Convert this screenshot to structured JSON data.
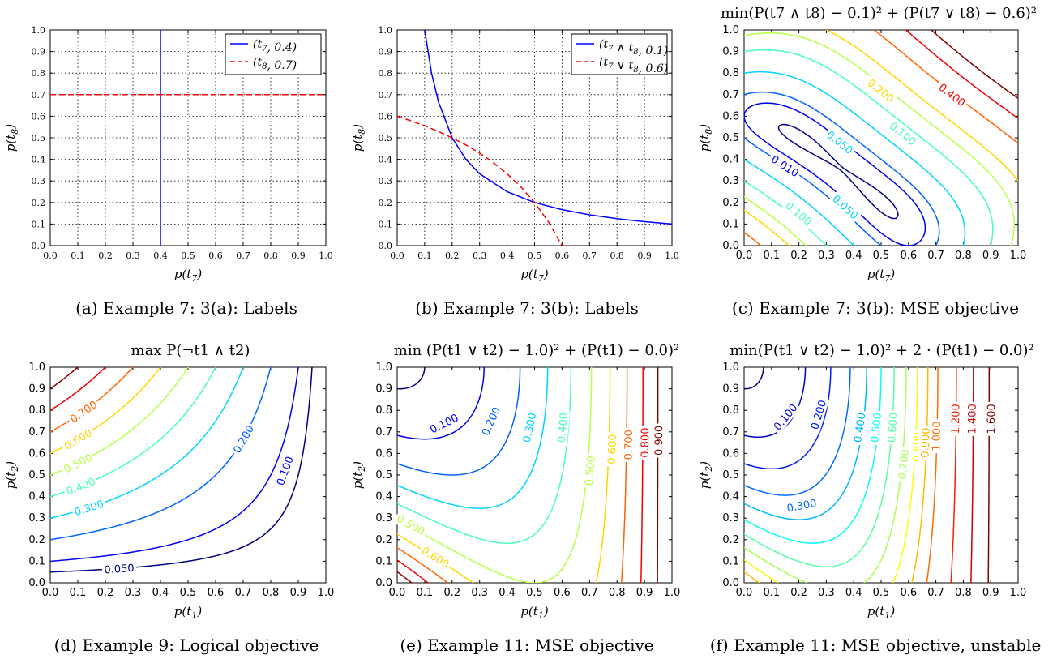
{
  "chart_data": [
    {
      "id": "a",
      "type": "line",
      "title": "",
      "caption": "(a) Example 7: 3(a): Labels",
      "xlabel": "p(t7)",
      "ylabel": "p(t8)",
      "xlim": [
        0,
        1
      ],
      "ylim": [
        0,
        1
      ],
      "ticks": [
        "0.0",
        "0.1",
        "0.2",
        "0.3",
        "0.4",
        "0.5",
        "0.6",
        "0.7",
        "0.8",
        "0.9",
        "1.0"
      ],
      "grid": true,
      "legend_position": "top-right",
      "series": [
        {
          "name": "(t7, 0.4)",
          "style": "solid",
          "color": "#0000ff",
          "x": [
            0.4,
            0.4
          ],
          "y": [
            0,
            1
          ]
        },
        {
          "name": "(t8, 0.7)",
          "style": "dashed",
          "color": "#ff0000",
          "x": [
            0,
            1
          ],
          "y": [
            0.7,
            0.7
          ]
        }
      ]
    },
    {
      "id": "b",
      "type": "line",
      "title": "",
      "caption": "(b) Example 7: 3(b): Labels",
      "xlabel": "p(t7)",
      "ylabel": "p(t8)",
      "xlim": [
        0,
        1
      ],
      "ylim": [
        0,
        1
      ],
      "ticks": [
        "0.0",
        "0.1",
        "0.2",
        "0.3",
        "0.4",
        "0.5",
        "0.6",
        "0.7",
        "0.8",
        "0.9",
        "1.0"
      ],
      "grid": true,
      "legend_position": "top-right",
      "series": [
        {
          "name": "(t7 ∧ t8, 0.1)",
          "style": "solid",
          "color": "#0000ff",
          "x": [
            0.1,
            0.125,
            0.15,
            0.2,
            0.25,
            0.3,
            0.4,
            0.5,
            0.6,
            0.7,
            0.8,
            0.9,
            1.0
          ],
          "y": [
            1.0,
            0.8,
            0.667,
            0.5,
            0.4,
            0.333,
            0.25,
            0.2,
            0.167,
            0.143,
            0.125,
            0.111,
            0.1
          ]
        },
        {
          "name": "(t7 ∨ t8, 0.6)",
          "style": "dashed",
          "color": "#ff0000",
          "x": [
            0.0,
            0.05,
            0.1,
            0.15,
            0.2,
            0.25,
            0.3,
            0.35,
            0.4,
            0.45,
            0.5,
            0.55,
            0.6
          ],
          "y": [
            0.6,
            0.579,
            0.556,
            0.529,
            0.5,
            0.467,
            0.429,
            0.385,
            0.333,
            0.273,
            0.2,
            0.111,
            0.0
          ]
        }
      ]
    },
    {
      "id": "c",
      "type": "contour",
      "title": "min(P(t7 ∧ t8) − 0.1)² + (P(t7 ∨ t8) − 0.6)²",
      "caption": "(c) Example 7: 3(b): MSE objective",
      "xlabel": "p(t7)",
      "ylabel": "p(t8)",
      "xlim": [
        0,
        1
      ],
      "ylim": [
        0,
        1
      ],
      "ticks": [
        "0.0",
        "0.1",
        "0.2",
        "0.3",
        "0.4",
        "0.5",
        "0.6",
        "0.7",
        "0.8",
        "0.9",
        "1.0"
      ],
      "function": "(x*y - 0.1)^2 + (x + y - x*y - 0.6)^2",
      "levels": [
        0.001,
        0.01,
        0.02,
        0.05,
        0.1,
        0.15,
        0.2,
        0.3,
        0.4,
        0.5
      ],
      "contour_labels": [
        {
          "text": "0.010",
          "level": 0.01,
          "x": 0.15,
          "y": 0.37
        },
        {
          "text": "0.050",
          "level": 0.05,
          "x": 0.35,
          "y": 0.48
        },
        {
          "text": "0.100",
          "level": 0.1,
          "x": 0.58,
          "y": 0.52
        },
        {
          "text": "0.200",
          "level": 0.2,
          "x": 0.5,
          "y": 0.72
        },
        {
          "text": "0.400",
          "level": 0.4,
          "x": 0.76,
          "y": 0.7
        },
        {
          "text": "0.100",
          "level": 0.1,
          "x": 0.2,
          "y": 0.15
        },
        {
          "text": "0.050",
          "level": 0.05,
          "x": 0.37,
          "y": 0.18
        }
      ]
    },
    {
      "id": "d",
      "type": "contour",
      "title": "max P(¬t1 ∧ t2)",
      "caption": "(d) Example 9: Logical objective",
      "xlabel": "p(t1)",
      "ylabel": "p(t2)",
      "xlim": [
        0,
        1
      ],
      "ylim": [
        0,
        1
      ],
      "ticks": [
        "0.0",
        "0.1",
        "0.2",
        "0.3",
        "0.4",
        "0.5",
        "0.6",
        "0.7",
        "0.8",
        "0.9",
        "1.0"
      ],
      "function": "(1 - x) * y",
      "levels": [
        0.05,
        0.1,
        0.2,
        0.3,
        0.4,
        0.5,
        0.6,
        0.7,
        0.8,
        0.9
      ],
      "contour_labels": [
        {
          "text": "0.050",
          "level": 0.05,
          "x": 0.25,
          "y": 0.067
        },
        {
          "text": "0.100",
          "level": 0.1,
          "x": 0.85,
          "y": 0.52
        },
        {
          "text": "0.200",
          "level": 0.2,
          "x": 0.7,
          "y": 0.667
        },
        {
          "text": "0.300",
          "level": 0.3,
          "x": 0.14,
          "y": 0.349
        },
        {
          "text": "0.400",
          "level": 0.4,
          "x": 0.11,
          "y": 0.449
        },
        {
          "text": "0.500",
          "level": 0.5,
          "x": 0.1,
          "y": 0.556
        },
        {
          "text": "0.600",
          "level": 0.6,
          "x": 0.1,
          "y": 0.667
        },
        {
          "text": "0.700",
          "level": 0.7,
          "x": 0.12,
          "y": 0.795
        }
      ]
    },
    {
      "id": "e",
      "type": "contour",
      "title": "min  (P(t1 ∨ t2) − 1.0)² + (P(t1) − 0.0)²",
      "caption": "(e) Example 11: MSE objective",
      "xlabel": "p(t1)",
      "ylabel": "p(t2)",
      "xlim": [
        0,
        1
      ],
      "ylim": [
        0,
        1
      ],
      "ticks": [
        "0.0",
        "0.1",
        "0.2",
        "0.3",
        "0.4",
        "0.5",
        "0.6",
        "0.7",
        "0.8",
        "0.9",
        "1.0"
      ],
      "function": "(x + y - x*y - 1)^2 + x^2",
      "levels": [
        0.01,
        0.1,
        0.2,
        0.3,
        0.4,
        0.5,
        0.6,
        0.7,
        0.8,
        0.9
      ],
      "contour_labels": [
        {
          "text": "0.100",
          "level": 0.1,
          "x": 0.17,
          "y": 0.74
        },
        {
          "text": "0.200",
          "level": 0.2,
          "x": 0.34,
          "y": 0.75
        },
        {
          "text": "0.300",
          "level": 0.3,
          "x": 0.48,
          "y": 0.72
        },
        {
          "text": "0.400",
          "level": 0.4,
          "x": 0.6,
          "y": 0.72
        },
        {
          "text": "0.500",
          "level": 0.5,
          "x": 0.7,
          "y": 0.52
        },
        {
          "text": "0.600",
          "level": 0.6,
          "x": 0.78,
          "y": 0.62
        },
        {
          "text": "0.700",
          "level": 0.7,
          "x": 0.84,
          "y": 0.64
        },
        {
          "text": "0.800",
          "level": 0.8,
          "x": 0.9,
          "y": 0.65
        },
        {
          "text": "0.900",
          "level": 0.9,
          "x": 0.95,
          "y": 0.66
        },
        {
          "text": "0.500",
          "level": 0.5,
          "x": 0.05,
          "y": 0.27
        },
        {
          "text": "0.600",
          "level": 0.6,
          "x": 0.14,
          "y": 0.12
        }
      ]
    },
    {
      "id": "f",
      "type": "contour",
      "title": "min(P(t1 ∨ t2) − 1.0)² + 2 · (P(t1) − 0.0)²",
      "caption": "(f) Example 11: MSE objective, unstable",
      "xlabel": "p(t1)",
      "ylabel": "p(t2)",
      "xlim": [
        0,
        1
      ],
      "ylim": [
        0,
        1
      ],
      "ticks": [
        "0.0",
        "0.1",
        "0.2",
        "0.3",
        "0.4",
        "0.5",
        "0.6",
        "0.7",
        "0.8",
        "0.9",
        "1.0"
      ],
      "function": "(x + y - x*y - 1)^2 + 2*x^2",
      "levels": [
        0.01,
        0.1,
        0.2,
        0.3,
        0.4,
        0.5,
        0.6,
        0.7,
        0.8,
        0.9,
        1.0,
        1.2,
        1.4,
        1.6
      ],
      "contour_labels": [
        {
          "text": "0.100",
          "level": 0.1,
          "x": 0.15,
          "y": 0.77
        },
        {
          "text": "0.200",
          "level": 0.2,
          "x": 0.27,
          "y": 0.78
        },
        {
          "text": "0.300",
          "level": 0.3,
          "x": 0.21,
          "y": 0.36
        },
        {
          "text": "0.400",
          "level": 0.4,
          "x": 0.42,
          "y": 0.72
        },
        {
          "text": "0.500",
          "level": 0.5,
          "x": 0.48,
          "y": 0.72
        },
        {
          "text": "0.600",
          "level": 0.6,
          "x": 0.54,
          "y": 0.72
        },
        {
          "text": "0.700",
          "level": 0.7,
          "x": 0.58,
          "y": 0.55
        },
        {
          "text": "0.800",
          "level": 0.8,
          "x": 0.63,
          "y": 0.63
        },
        {
          "text": "0.900",
          "level": 0.9,
          "x": 0.66,
          "y": 0.65
        },
        {
          "text": "1.000",
          "level": 1.0,
          "x": 0.7,
          "y": 0.68
        },
        {
          "text": "1.200",
          "level": 1.2,
          "x": 0.77,
          "y": 0.76
        },
        {
          "text": "1.400",
          "level": 1.4,
          "x": 0.83,
          "y": 0.76
        },
        {
          "text": "1.600",
          "level": 1.6,
          "x": 0.9,
          "y": 0.76
        }
      ]
    }
  ]
}
